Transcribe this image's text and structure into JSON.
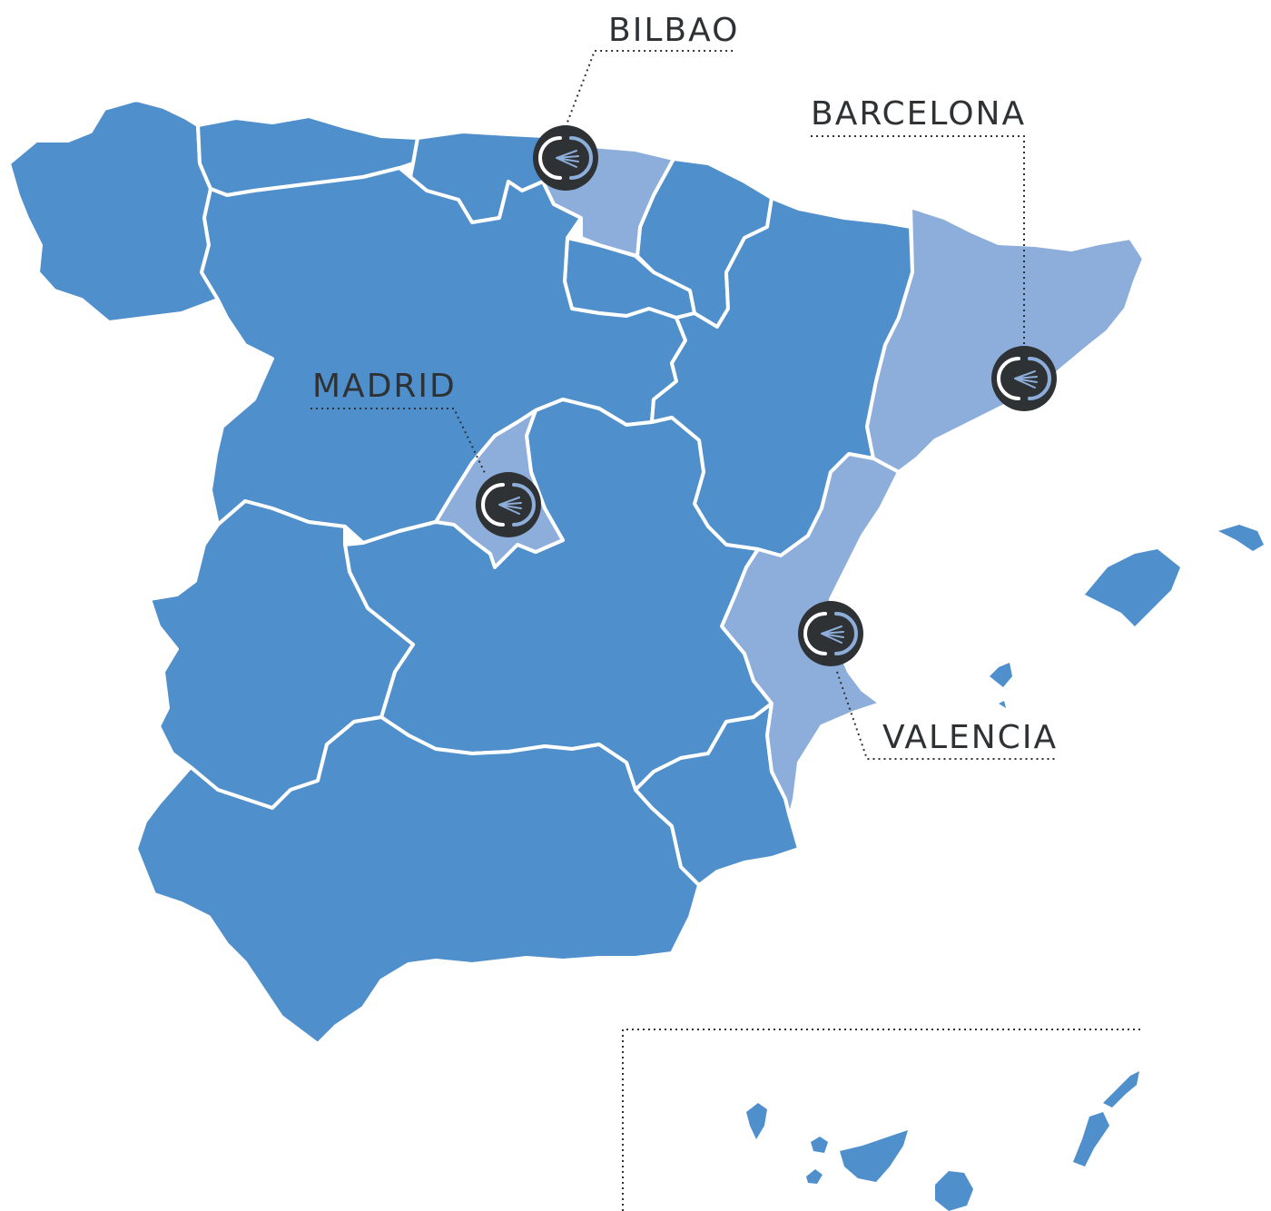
{
  "colors": {
    "region_default": "#4F8FCC",
    "region_highlight": "#8DAEDB",
    "marker_ring": "#2F3234",
    "marker_accent": "#8DAEDB",
    "border": "#FFFFFF",
    "label_text": "#2F3234"
  },
  "offices": [
    {
      "id": "bilbao",
      "label": "BILBAO",
      "icon": "office-logo-icon"
    },
    {
      "id": "barcelona",
      "label": "BARCELONA",
      "icon": "office-logo-icon"
    },
    {
      "id": "madrid",
      "label": "MADRID",
      "icon": "office-logo-icon"
    },
    {
      "id": "valencia",
      "label": "VALENCIA",
      "icon": "office-logo-icon"
    }
  ],
  "highlighted_regions": [
    "Basque Country",
    "Catalonia",
    "Community of Madrid",
    "Valencian Community"
  ]
}
